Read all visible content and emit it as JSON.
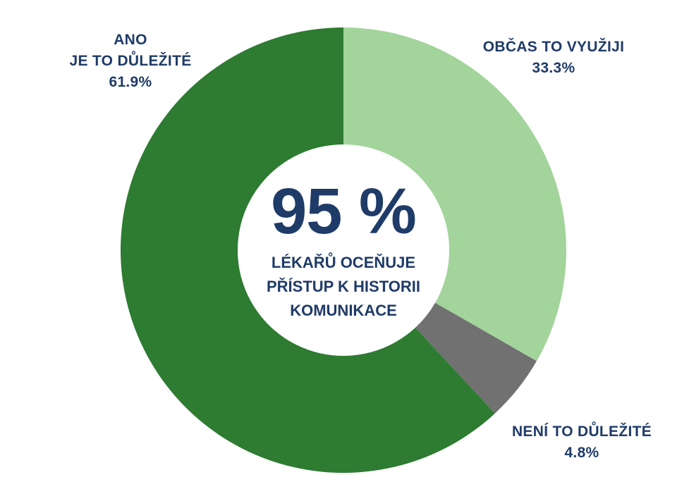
{
  "chart_data": {
    "type": "pie",
    "donut": true,
    "start_angle_deg": 0,
    "direction": "clockwise",
    "slices": [
      {
        "id": "obcas",
        "label_lines": [
          "OBČAS TO VYUŽIJI"
        ],
        "value": 33.3,
        "value_label": "33.3%",
        "color": "#a3d49b"
      },
      {
        "id": "neni",
        "label_lines": [
          "NENÍ TO DŮLEŽITÉ"
        ],
        "value": 4.8,
        "value_label": "4.8%",
        "color": "#717171"
      },
      {
        "id": "ano",
        "label_lines": [
          "ANO",
          "JE TO DŮLEŽITÉ"
        ],
        "value": 61.9,
        "value_label": "61.9%",
        "color": "#2e7b32"
      }
    ],
    "center_text": {
      "headline": "95 %",
      "lines": [
        "LÉKAŘŮ OCEŇUJE",
        "PŘÍSTUP K HISTORII",
        "KOMUNIKACE"
      ]
    }
  }
}
